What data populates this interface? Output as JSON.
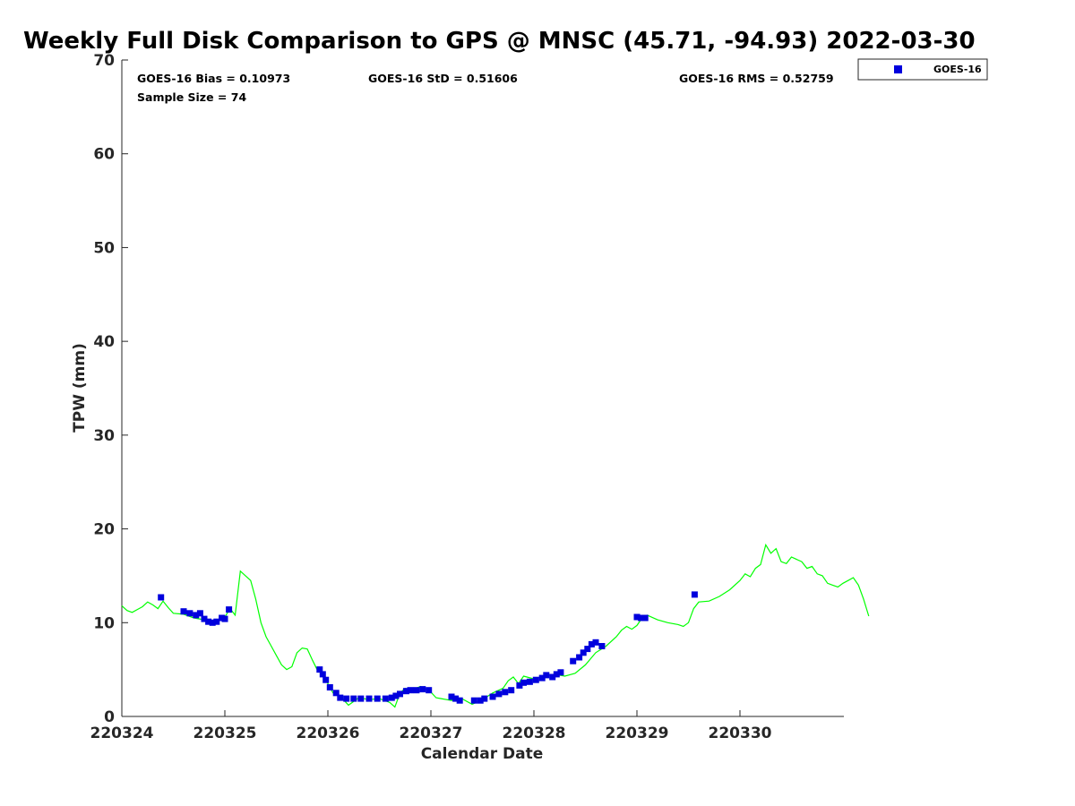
{
  "chart_data": {
    "type": "scatter",
    "title": "Weekly Full Disk Comparison to GPS @ MNSC (45.71, -94.93) 2022-03-30",
    "xlabel": "Calendar Date",
    "ylabel": "TPW (mm)",
    "xlim": [
      0,
      7
    ],
    "ylim": [
      0,
      70
    ],
    "x_ticks": [
      0,
      1,
      2,
      3,
      4,
      5,
      6
    ],
    "x_tick_labels": [
      "220324",
      "220325",
      "220326",
      "220327",
      "220328",
      "220329",
      "220330"
    ],
    "y_ticks": [
      0,
      10,
      20,
      30,
      40,
      50,
      60,
      70
    ],
    "y_tick_labels": [
      "0",
      "10",
      "20",
      "30",
      "40",
      "50",
      "60",
      "70"
    ],
    "stats": {
      "bias": "GOES-16 Bias = 0.10973",
      "std": "GOES-16 StD = 0.51606",
      "rms": "GOES-16 RMS = 0.52759",
      "sample_size": "Sample Size = 74"
    },
    "legend": {
      "label": "GOES-16",
      "position": "top-right outside"
    },
    "series": [
      {
        "name": "GPS",
        "style": "line",
        "color": "#00ff00",
        "points": [
          [
            0.0,
            11.8
          ],
          [
            0.05,
            11.3
          ],
          [
            0.1,
            11.1
          ],
          [
            0.15,
            11.4
          ],
          [
            0.2,
            11.7
          ],
          [
            0.25,
            12.2
          ],
          [
            0.3,
            11.9
          ],
          [
            0.35,
            11.5
          ],
          [
            0.4,
            12.3
          ],
          [
            0.45,
            11.6
          ],
          [
            0.5,
            11.0
          ],
          [
            0.6,
            10.9
          ],
          [
            0.7,
            10.5
          ],
          [
            0.8,
            10.3
          ],
          [
            0.9,
            10.2
          ],
          [
            1.0,
            10.6
          ],
          [
            1.05,
            11.5
          ],
          [
            1.1,
            10.8
          ],
          [
            1.15,
            15.5
          ],
          [
            1.2,
            15.0
          ],
          [
            1.25,
            14.5
          ],
          [
            1.3,
            12.5
          ],
          [
            1.35,
            10.0
          ],
          [
            1.4,
            8.5
          ],
          [
            1.45,
            7.5
          ],
          [
            1.5,
            6.5
          ],
          [
            1.55,
            5.5
          ],
          [
            1.6,
            5.0
          ],
          [
            1.65,
            5.3
          ],
          [
            1.7,
            6.8
          ],
          [
            1.75,
            7.3
          ],
          [
            1.8,
            7.2
          ],
          [
            1.85,
            6.0
          ],
          [
            1.9,
            4.9
          ],
          [
            1.95,
            4.5
          ],
          [
            2.0,
            3.5
          ],
          [
            2.05,
            2.5
          ],
          [
            2.1,
            2.3
          ],
          [
            2.15,
            1.8
          ],
          [
            2.2,
            1.2
          ],
          [
            2.3,
            2.0
          ],
          [
            2.4,
            1.8
          ],
          [
            2.5,
            1.9
          ],
          [
            2.6,
            1.5
          ],
          [
            2.65,
            1.0
          ],
          [
            2.7,
            2.5
          ],
          [
            2.75,
            3.0
          ],
          [
            2.8,
            2.8
          ],
          [
            2.9,
            3.2
          ],
          [
            3.0,
            2.6
          ],
          [
            3.05,
            2.0
          ],
          [
            3.1,
            1.9
          ],
          [
            3.2,
            1.7
          ],
          [
            3.3,
            1.9
          ],
          [
            3.4,
            1.3
          ],
          [
            3.5,
            1.8
          ],
          [
            3.6,
            2.5
          ],
          [
            3.7,
            3.0
          ],
          [
            3.75,
            3.8
          ],
          [
            3.8,
            4.2
          ],
          [
            3.85,
            3.5
          ],
          [
            3.9,
            4.3
          ],
          [
            4.0,
            4.0
          ],
          [
            4.1,
            4.3
          ],
          [
            4.2,
            4.5
          ],
          [
            4.3,
            4.3
          ],
          [
            4.4,
            4.6
          ],
          [
            4.5,
            5.5
          ],
          [
            4.6,
            6.8
          ],
          [
            4.7,
            7.5
          ],
          [
            4.8,
            8.5
          ],
          [
            4.85,
            9.2
          ],
          [
            4.9,
            9.6
          ],
          [
            4.95,
            9.3
          ],
          [
            5.0,
            9.7
          ],
          [
            5.05,
            10.5
          ],
          [
            5.1,
            10.8
          ],
          [
            5.2,
            10.3
          ],
          [
            5.3,
            10.0
          ],
          [
            5.4,
            9.8
          ],
          [
            5.45,
            9.6
          ],
          [
            5.5,
            10.0
          ],
          [
            5.55,
            11.5
          ],
          [
            5.6,
            12.2
          ],
          [
            5.7,
            12.3
          ],
          [
            5.8,
            12.8
          ],
          [
            5.9,
            13.5
          ],
          [
            6.0,
            14.5
          ],
          [
            6.05,
            15.2
          ],
          [
            6.1,
            14.9
          ],
          [
            6.15,
            15.8
          ],
          [
            6.2,
            16.2
          ],
          [
            6.25,
            18.3
          ],
          [
            6.3,
            17.4
          ],
          [
            6.35,
            17.9
          ],
          [
            6.4,
            16.5
          ],
          [
            6.45,
            16.3
          ],
          [
            6.5,
            17.0
          ],
          [
            6.6,
            16.5
          ],
          [
            6.65,
            15.8
          ],
          [
            6.7,
            16.0
          ],
          [
            6.75,
            15.2
          ],
          [
            6.8,
            15.0
          ],
          [
            6.85,
            14.2
          ],
          [
            6.9,
            14.0
          ],
          [
            6.95,
            13.8
          ],
          [
            7.0,
            14.2
          ],
          [
            7.05,
            14.5
          ],
          [
            7.1,
            14.8
          ],
          [
            7.15,
            14.0
          ],
          [
            7.2,
            12.5
          ],
          [
            7.25,
            10.7
          ]
        ]
      },
      {
        "name": "GOES-16",
        "style": "markers",
        "color": "#0000dd",
        "points": [
          [
            0.38,
            12.7
          ],
          [
            0.6,
            11.2
          ],
          [
            0.66,
            11.0
          ],
          [
            0.72,
            10.8
          ],
          [
            0.76,
            11.0
          ],
          [
            0.8,
            10.4
          ],
          [
            0.84,
            10.1
          ],
          [
            0.88,
            10.0
          ],
          [
            0.92,
            10.1
          ],
          [
            0.97,
            10.5
          ],
          [
            1.0,
            10.4
          ],
          [
            1.04,
            11.4
          ],
          [
            1.92,
            5.0
          ],
          [
            1.95,
            4.5
          ],
          [
            1.98,
            3.9
          ],
          [
            2.02,
            3.1
          ],
          [
            2.08,
            2.5
          ],
          [
            2.12,
            2.0
          ],
          [
            2.18,
            1.9
          ],
          [
            2.25,
            1.9
          ],
          [
            2.32,
            1.9
          ],
          [
            2.4,
            1.9
          ],
          [
            2.48,
            1.9
          ],
          [
            2.56,
            1.9
          ],
          [
            2.62,
            2.0
          ],
          [
            2.66,
            2.2
          ],
          [
            2.7,
            2.4
          ],
          [
            2.76,
            2.7
          ],
          [
            2.8,
            2.8
          ],
          [
            2.86,
            2.8
          ],
          [
            2.92,
            2.9
          ],
          [
            2.98,
            2.8
          ],
          [
            3.2,
            2.1
          ],
          [
            3.24,
            1.9
          ],
          [
            3.28,
            1.7
          ],
          [
            3.42,
            1.7
          ],
          [
            3.48,
            1.7
          ],
          [
            3.52,
            1.9
          ],
          [
            3.6,
            2.1
          ],
          [
            3.66,
            2.4
          ],
          [
            3.72,
            2.6
          ],
          [
            3.78,
            2.8
          ],
          [
            3.86,
            3.3
          ],
          [
            3.9,
            3.6
          ],
          [
            3.96,
            3.7
          ],
          [
            4.02,
            3.9
          ],
          [
            4.08,
            4.1
          ],
          [
            4.12,
            4.4
          ],
          [
            4.18,
            4.2
          ],
          [
            4.22,
            4.5
          ],
          [
            4.26,
            4.7
          ],
          [
            4.38,
            5.9
          ],
          [
            4.44,
            6.3
          ],
          [
            4.48,
            6.8
          ],
          [
            4.52,
            7.2
          ],
          [
            4.56,
            7.7
          ],
          [
            4.6,
            7.9
          ],
          [
            4.66,
            7.5
          ],
          [
            5.0,
            10.6
          ],
          [
            5.04,
            10.5
          ],
          [
            5.08,
            10.5
          ],
          [
            5.56,
            13.0
          ]
        ]
      }
    ]
  }
}
